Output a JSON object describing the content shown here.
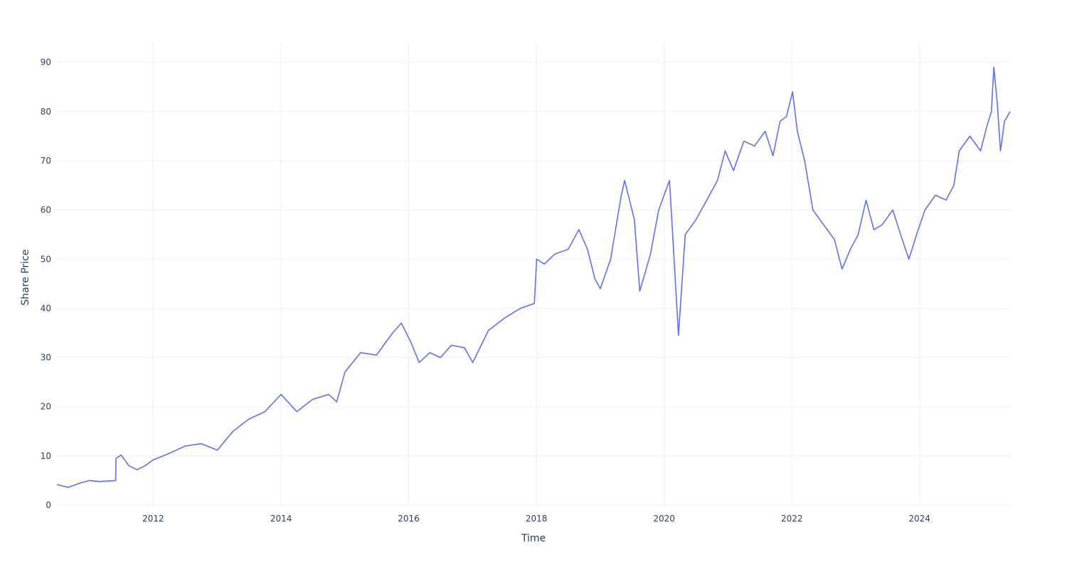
{
  "chart_data": {
    "type": "line",
    "title": "",
    "xlabel": "Time",
    "ylabel": "Share Price",
    "xlim": [
      "2010-06-29",
      "2025-06-02"
    ],
    "ylim": [
      0,
      94
    ],
    "x_ticks": [
      "2012",
      "2014",
      "2016",
      "2018",
      "2020",
      "2022",
      "2024"
    ],
    "y_ticks": [
      0,
      10,
      20,
      30,
      40,
      50,
      60,
      70,
      80,
      90
    ],
    "grid": true,
    "legend": "none",
    "colors": {
      "line": "#636efa",
      "grid": "#ebf0f8",
      "text": "#2a3f5f"
    },
    "series": [
      {
        "x": [
          "2010-06-29",
          "2010-09-01",
          "2010-11-01",
          "2011-01-01",
          "2011-03-01",
          "2011-05-31",
          "2011-06-02",
          "2011-07-01",
          "2011-08-15",
          "2011-10-01",
          "2011-11-15",
          "2012-01-01",
          "2012-04-01",
          "2012-07-01",
          "2012-10-01",
          "2013-01-01",
          "2013-04-01",
          "2013-07-01",
          "2013-10-01",
          "2014-01-01",
          "2014-04-01",
          "2014-07-01",
          "2014-10-01",
          "2014-11-15",
          "2015-01-01",
          "2015-04-01",
          "2015-07-01",
          "2015-10-01",
          "2015-11-20",
          "2016-01-15",
          "2016-03-01",
          "2016-05-01",
          "2016-07-01",
          "2016-09-01",
          "2016-11-15",
          "2017-01-01",
          "2017-04-01",
          "2017-07-01",
          "2017-10-01",
          "2017-12-20",
          "2018-01-02",
          "2018-02-15",
          "2018-04-15",
          "2018-07-01",
          "2018-09-01",
          "2018-10-20",
          "2018-12-01",
          "2019-01-01",
          "2019-03-01",
          "2019-05-01",
          "2019-05-20",
          "2019-07-15",
          "2019-08-15",
          "2019-10-15",
          "2019-12-01",
          "2020-02-01",
          "2020-03-23",
          "2020-05-01",
          "2020-07-01",
          "2020-09-01",
          "2020-11-01",
          "2020-12-15",
          "2021-02-01",
          "2021-04-01",
          "2021-06-01",
          "2021-08-01",
          "2021-09-15",
          "2021-10-25",
          "2021-12-01",
          "2022-01-05",
          "2022-02-01",
          "2022-03-15",
          "2022-05-01",
          "2022-07-01",
          "2022-09-01",
          "2022-10-15",
          "2022-12-01",
          "2023-01-15",
          "2023-03-01",
          "2023-04-15",
          "2023-06-01",
          "2023-08-01",
          "2023-09-15",
          "2023-11-01",
          "2023-12-15",
          "2024-02-01",
          "2024-04-01",
          "2024-06-01",
          "2024-07-15",
          "2024-08-15",
          "2024-10-15",
          "2024-12-15",
          "2025-01-20",
          "2025-02-15",
          "2025-03-01",
          "2025-03-20",
          "2025-04-08",
          "2025-05-01",
          "2025-06-02"
        ],
        "y": [
          4.2,
          3.6,
          4.4,
          5.0,
          4.8,
          5.0,
          9.5,
          10.2,
          8.0,
          7.2,
          8.0,
          9.2,
          10.5,
          12.0,
          12.5,
          11.2,
          15.0,
          17.5,
          19.0,
          22.5,
          19.0,
          21.5,
          22.5,
          21.0,
          27.0,
          31.0,
          30.5,
          35.0,
          37.0,
          33.0,
          29.0,
          31.0,
          30.0,
          32.5,
          32.0,
          29.0,
          35.5,
          38.0,
          40.0,
          41.0,
          50.0,
          49.0,
          51.0,
          52.0,
          56.0,
          52.0,
          46.0,
          44.0,
          50.0,
          63.0,
          66.0,
          58.0,
          43.5,
          51.0,
          60.0,
          66.0,
          34.5,
          55.0,
          58.0,
          62.0,
          66.0,
          72.0,
          68.0,
          74.0,
          73.0,
          76.0,
          71.0,
          78.0,
          79.0,
          84.0,
          76.0,
          70.0,
          60.0,
          57.0,
          54.0,
          48.0,
          52.0,
          55.0,
          62.0,
          56.0,
          57.0,
          60.0,
          55.0,
          50.0,
          55.0,
          60.0,
          63.0,
          62.0,
          65.0,
          72.0,
          75.0,
          72.0,
          77.0,
          80.0,
          89.0,
          82.0,
          72.0,
          78.0,
          80.0
        ]
      }
    ]
  }
}
